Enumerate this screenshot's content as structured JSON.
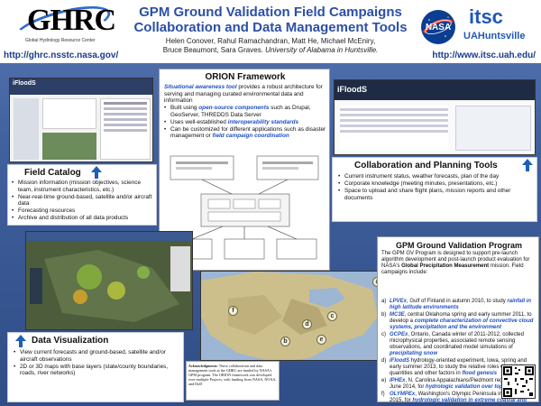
{
  "header": {
    "ghrc_logo_text": "GHRC",
    "ghrc_logo_sub": "Global Hydrology Resource Center",
    "url_left": "http://ghrc.nsstc.nasa.gov/",
    "title_line1": "GPM Ground Validation Field Campaigns",
    "title_line2": "Collaboration and Data Management Tools",
    "authors_line1": "Helen Conover, Rahul Ramachandran, Matt He, Michael McEniry,",
    "authors_line2a": "Bruce Beaumont, Sara Graves.",
    "authors_line2b": "University of Alabama in Huntsville.",
    "nasa_logo_text": "NASA",
    "itsc_logo_text": "itsc",
    "itsc_logo_sub": "UAHuntsville",
    "url_right": "http://www.itsc.uah.edu/"
  },
  "field_catalog": {
    "title": "Field Catalog",
    "screenshot_label": "iFloodS",
    "bullets": [
      "Mission information (mission objectives, science team, instrument characteristics, etc.)",
      "Near-real-time ground-based, satellite and/or aircraft data",
      "Forecasting resources",
      "Archive and distribution of all data products"
    ]
  },
  "orion": {
    "title": "ORION Framework",
    "intro_hl": "Situational awareness tool",
    "intro_rest": " provides a robust architecture for serving and managing curated environmental data and information",
    "bullets": [
      {
        "pre": "Built using ",
        "hl": "open-source components",
        "post": " such as Drupal, GeoServer, THREDDS Data Server"
      },
      {
        "pre": "Uses well-established ",
        "hl": "interoperability standards",
        "post": ""
      },
      {
        "pre": "Can be customized for different applications such as disaster management or ",
        "hl": "field campaign coordination",
        "post": ""
      }
    ]
  },
  "collab_tools": {
    "title": "Collaboration and Planning Tools",
    "screenshot_label": "iFloodS",
    "bullets": [
      "Current instrument status, weather forecasts, plan of the day",
      "Corporate knowledge (meeting minutes, presentations, etc.)",
      "Space to upload and share flight plans, mission reports and other documents"
    ]
  },
  "data_viz": {
    "title": "Data Visualization",
    "bullets": [
      "View current forecasts and ground-based, satellite and/or aircraft observations",
      "2D or 3D maps with base layers (state/county boundaries, roads, river networks)"
    ]
  },
  "acknowledgments": {
    "label": "Acknowledgments:",
    "text": " These collaboration and data management tools at the GHRC are funded by NASA's GPM program. The ORION framework was developed over multiple Projects, with funding from NASA, NOAA, and DoD"
  },
  "gpm_gv": {
    "title": "GPM Ground Validation Program",
    "intro_pre": "The GPM GV Program is designed to support pre-launch algorithm development and post-launch product evaluation for NASA's ",
    "intro_bold": "Global Precipitation Measurement",
    "intro_post": " mission. Field campaigns include:",
    "campaigns": [
      {
        "label": "a)",
        "name": "LPVEx",
        "text": ", Gulf of Finland in autumn 2010, to study ",
        "hl": "rainfall in high latitude environments"
      },
      {
        "label": "b)",
        "name": "MC3E",
        "text": ", central Oklahoma spring and early summer 2011, to develop a ",
        "hl": "complete characterization of convective cloud systems, precipitation and the environment"
      },
      {
        "label": "c)",
        "name": "GCPEx",
        "text": ", Ontario, Canada winter of 2011-2012, collected microphysical properties, associated remote sensing observations, and coordinated model simulations of ",
        "hl": "precipitating snow"
      },
      {
        "label": "d)",
        "name": "iFloodS",
        "text": " hydrology-oriented experiment, Iowa, spring and early summer 2013, to study the relative roles of rainfall quantities and other factors in ",
        "hl": "flood genesis"
      },
      {
        "label": "e)",
        "name": "IPHEx",
        "text": ", N. Carolina Appalachians/Piedmont region in May-June 2014, for ",
        "hl": "hydrologic validation over topography"
      },
      {
        "label": "f)",
        "name": "OLYMPEx",
        "text": ", Washington's Olympic Peninsula in Nov-Dec 2015, for ",
        "hl": "hydrologic validation in extreme coastal and topographic gradients"
      }
    ],
    "map_markers": [
      "a",
      "b",
      "c",
      "d",
      "e",
      "f"
    ],
    "map_note": "LPVEx"
  },
  "colors": {
    "title_blue": "#2c4fa6",
    "highlight_blue": "#2050c0",
    "poster_bg": "#3f5f9c"
  }
}
